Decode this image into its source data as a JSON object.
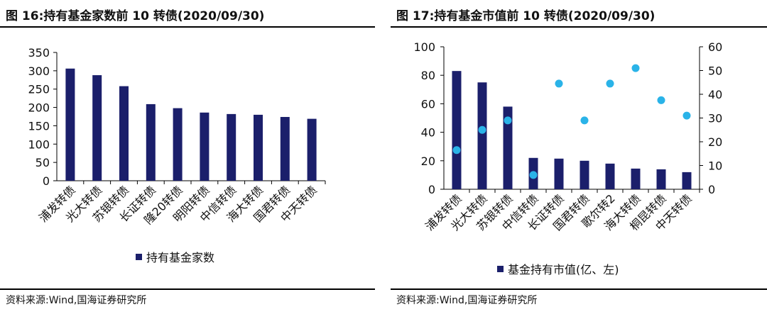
{
  "colors": {
    "bar": "#1b1f6b",
    "dot": "#2ab3e8",
    "axis": "#000000"
  },
  "charts": [
    {
      "figure_title": "图 16:持有基金家数前 10 转债(2020/09/30)",
      "source": "资料来源:Wind,国海证券研究所",
      "legend": [
        {
          "label": "持有基金家数",
          "marker": "square"
        }
      ]
    },
    {
      "figure_title": "图 17:持有基金市值前 10 转债(2020/09/30)",
      "source": "资料来源:Wind,国海证券研究所",
      "legend": [
        {
          "label": "基金持有市值(亿、左)",
          "marker": "square"
        }
      ]
    }
  ],
  "chart_data": [
    {
      "type": "bar",
      "title": "图 16:持有基金家数前 10 转债(2020/09/30)",
      "categories": [
        "浦发转债",
        "光大转债",
        "苏银转债",
        "长证转债",
        "隆20转债",
        "明阳转债",
        "中信转债",
        "海大转债",
        "国君转债",
        "中天转债"
      ],
      "series": [
        {
          "name": "持有基金家数",
          "values": [
            306,
            288,
            258,
            209,
            198,
            186,
            182,
            180,
            174,
            169
          ]
        }
      ],
      "ylim": [
        0,
        350
      ],
      "yticks": [
        "0",
        "50",
        "100",
        "150",
        "200",
        "250",
        "300",
        "350"
      ],
      "grid": false,
      "legend_position": "bottom"
    },
    {
      "type": "bar",
      "title": "图 17:持有基金市值前 10 转债(2020/09/30)",
      "categories": [
        "浦发转债",
        "光大转债",
        "苏银转债",
        "中信转债",
        "长证转债",
        "国君转债",
        "歌尔转2",
        "海大转债",
        "桐昆转债",
        "中天转债"
      ],
      "series": [
        {
          "name": "基金持有市值(亿、左)",
          "type": "bar",
          "axis": "left",
          "values": [
            83,
            75,
            58,
            22,
            21.5,
            20,
            18,
            14.5,
            14,
            12
          ]
        },
        {
          "type": "scatter",
          "axis": "right",
          "values": [
            16.5,
            25,
            29,
            6,
            44.5,
            29,
            44.5,
            51,
            37.5,
            31
          ]
        }
      ],
      "ylim": [
        0,
        100
      ],
      "yticks": [
        "0",
        "20",
        "40",
        "60",
        "80",
        "100"
      ],
      "y2lim": [
        0,
        60
      ],
      "y2ticks": [
        "0",
        "10",
        "20",
        "30",
        "40",
        "50",
        "60"
      ],
      "grid": false,
      "legend_position": "bottom"
    }
  ]
}
